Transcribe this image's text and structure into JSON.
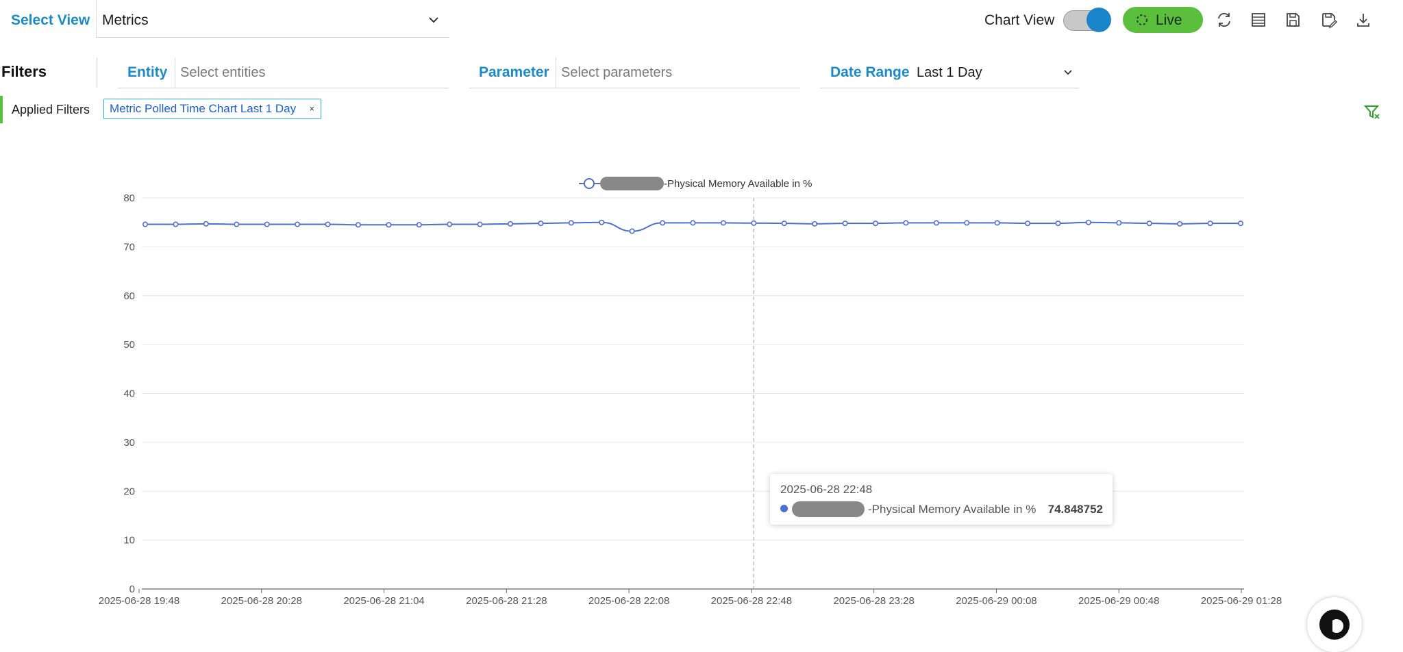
{
  "header": {
    "select_view_label": "Select View",
    "view_value": "Metrics",
    "chart_view_label": "Chart View",
    "chart_view_on": true,
    "live_label": "Live",
    "tools": [
      "refresh-icon",
      "table-icon",
      "save-icon",
      "save-as-icon",
      "download-icon"
    ]
  },
  "filters": {
    "title": "Filters",
    "entity": {
      "label": "Entity",
      "placeholder": "Select entities"
    },
    "parameter": {
      "label": "Parameter",
      "placeholder": "Select parameters"
    },
    "date_range": {
      "label": "Date Range",
      "value": "Last 1 Day"
    },
    "applied_label": "Applied Filters",
    "chip": {
      "text": "Metric Polled Time Chart Last 1 Day",
      "close": "×"
    }
  },
  "colors": {
    "accent": "#1a8ac8",
    "live": "#5bbf3d",
    "series": "#4d6fcf"
  },
  "chart_data": {
    "type": "line",
    "legend": {
      "series_suffix": "-Physical Memory Available in %",
      "position": "top-center"
    },
    "ylim": [
      0,
      80
    ],
    "yticks": [
      0,
      10,
      20,
      30,
      40,
      50,
      60,
      70,
      80
    ],
    "xtick_labels": [
      "2025-06-28 19:48",
      "2025-06-28 20:28",
      "2025-06-28 21:04",
      "2025-06-28 21:28",
      "2025-06-28 22:08",
      "2025-06-28 22:48",
      "2025-06-28 23:28",
      "2025-06-29 00:08",
      "2025-06-29 00:48",
      "2025-06-29 01:28"
    ],
    "grid": true,
    "series": [
      {
        "values": [
          74.6,
          74.6,
          74.7,
          74.6,
          74.6,
          74.6,
          74.6,
          74.5,
          74.5,
          74.5,
          74.6,
          74.6,
          74.7,
          74.8,
          74.9,
          75.0,
          73.2,
          74.9,
          74.9,
          74.9,
          74.85,
          74.8,
          74.7,
          74.8,
          74.8,
          74.9,
          74.9,
          74.9,
          74.9,
          74.8,
          74.8,
          75.0,
          74.9,
          74.8,
          74.7,
          74.8,
          74.8
        ]
      }
    ],
    "tooltip": {
      "date": "2025-06-28 22:48",
      "series_suffix": "-Physical Memory Available in %",
      "value": "74.848752",
      "index": 20
    }
  }
}
